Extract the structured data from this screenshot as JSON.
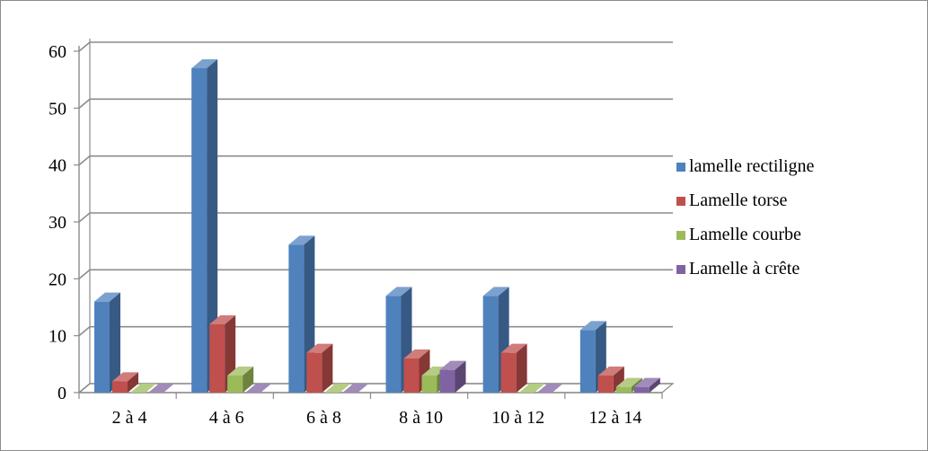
{
  "chart_data": {
    "type": "bar",
    "categories": [
      "2 à 4",
      "4 à 6",
      "6 à 8",
      "8 à 10",
      "10 à 12",
      "12 à 14"
    ],
    "series": [
      {
        "name": "lamelle rectiligne",
        "values": [
          16,
          57,
          26,
          17,
          17,
          11
        ],
        "color": "#4f81bd"
      },
      {
        "name": "Lamelle torse",
        "values": [
          2,
          12,
          7,
          6,
          7,
          3
        ],
        "color": "#c0504d"
      },
      {
        "name": "Lamelle courbe",
        "values": [
          0,
          3,
          0,
          3,
          0,
          1
        ],
        "color": "#9bbb59"
      },
      {
        "name": "Lamelle à  crête",
        "values": [
          0,
          0,
          0,
          4,
          0,
          1
        ],
        "color": "#8064a2"
      }
    ],
    "y_ticks": [
      "0",
      "10",
      "20",
      "30",
      "40",
      "50",
      "60"
    ],
    "ylim": [
      0,
      60
    ],
    "grid": true,
    "legend_position": "right",
    "style": "3d-clustered-column"
  }
}
